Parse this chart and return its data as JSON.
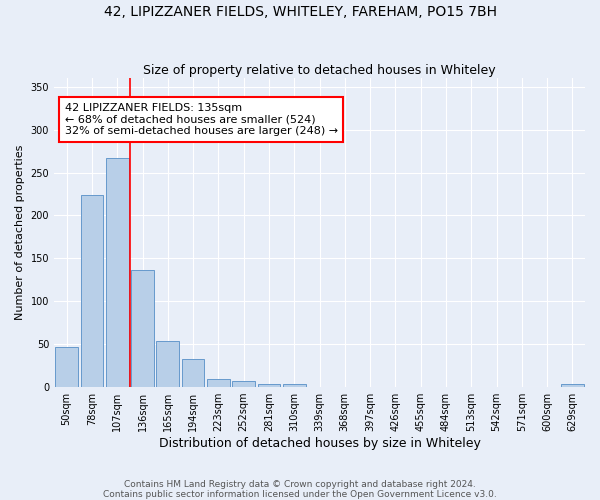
{
  "title": "42, LIPIZZANER FIELDS, WHITELEY, FAREHAM, PO15 7BH",
  "subtitle": "Size of property relative to detached houses in Whiteley",
  "xlabel": "Distribution of detached houses by size in Whiteley",
  "ylabel": "Number of detached properties",
  "footer_line1": "Contains HM Land Registry data © Crown copyright and database right 2024.",
  "footer_line2": "Contains public sector information licensed under the Open Government Licence v3.0.",
  "bar_labels": [
    "50sqm",
    "78sqm",
    "107sqm",
    "136sqm",
    "165sqm",
    "194sqm",
    "223sqm",
    "252sqm",
    "281sqm",
    "310sqm",
    "339sqm",
    "368sqm",
    "397sqm",
    "426sqm",
    "455sqm",
    "484sqm",
    "513sqm",
    "542sqm",
    "571sqm",
    "600sqm",
    "629sqm"
  ],
  "bar_values": [
    47,
    224,
    267,
    136,
    54,
    33,
    9,
    7,
    4,
    4,
    0,
    0,
    0,
    0,
    0,
    0,
    0,
    0,
    0,
    0,
    4
  ],
  "bar_color": "#b8cfe8",
  "bar_edge_color": "#6699cc",
  "background_color": "#e8eef8",
  "grid_color": "#ffffff",
  "annotation_text": "42 LIPIZZANER FIELDS: 135sqm\n← 68% of detached houses are smaller (524)\n32% of semi-detached houses are larger (248) →",
  "annotation_box_color": "white",
  "annotation_box_edge_color": "red",
  "vline_index": 2,
  "vline_color": "red",
  "ylim": [
    0,
    360
  ],
  "yticks": [
    0,
    50,
    100,
    150,
    200,
    250,
    300,
    350
  ],
  "title_fontsize": 10,
  "subtitle_fontsize": 9,
  "xlabel_fontsize": 9,
  "ylabel_fontsize": 8,
  "tick_fontsize": 7,
  "annotation_fontsize": 8,
  "footer_fontsize": 6.5
}
